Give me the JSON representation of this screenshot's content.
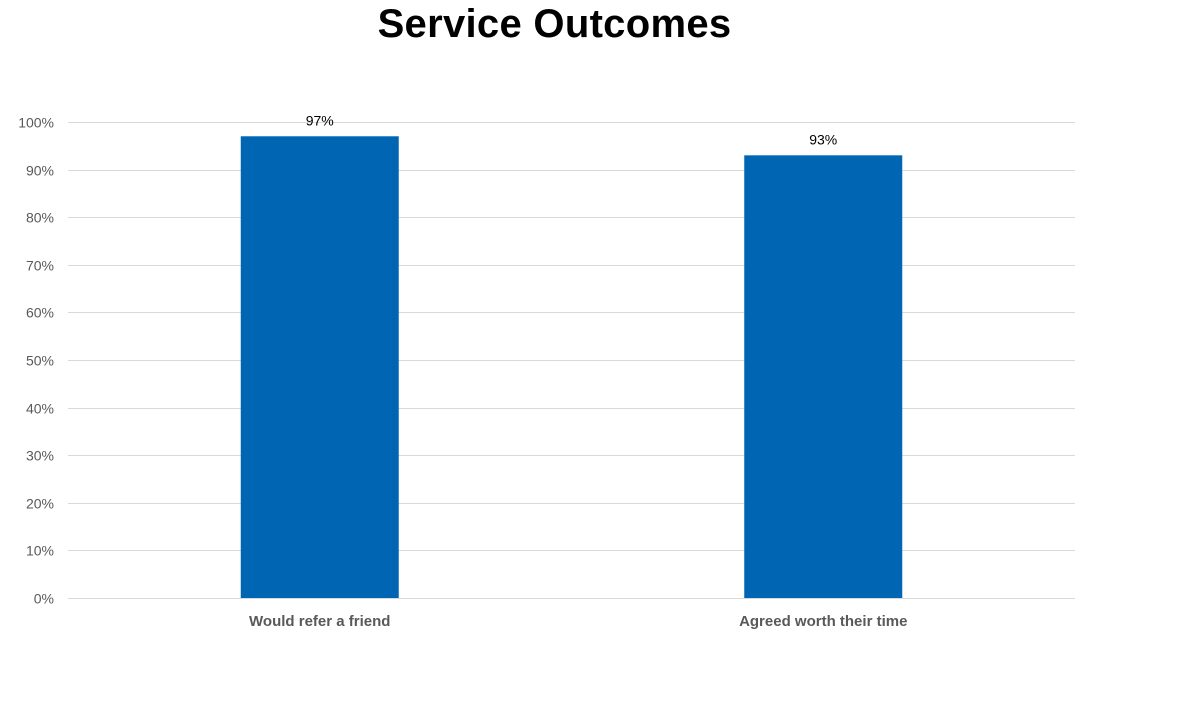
{
  "chart_data": {
    "type": "bar",
    "title": "Service Outcomes",
    "categories": [
      "Would refer a friend",
      "Agreed worth their time"
    ],
    "series": [
      {
        "values": [
          0.97,
          0.93
        ],
        "data_labels": [
          "97%",
          "93%"
        ]
      }
    ],
    "ylim": [
      0,
      1
    ],
    "y_ticks": [
      0,
      0.1,
      0.2,
      0.3,
      0.4,
      0.5,
      0.6,
      0.7,
      0.8,
      0.9,
      1.0
    ],
    "y_tick_labels": [
      "0%",
      "10%",
      "20%",
      "30%",
      "40%",
      "50%",
      "60%",
      "70%",
      "80%",
      "90%",
      "100%"
    ],
    "grid": true,
    "legend": "none",
    "bar_color": "#0066b3"
  }
}
